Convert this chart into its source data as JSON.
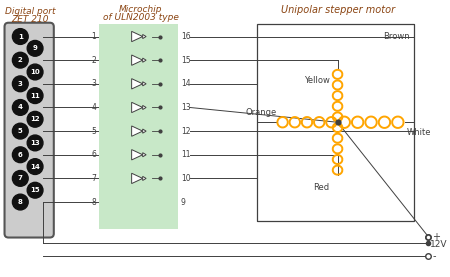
{
  "bg_color": "#ffffff",
  "port_title": "Digital port",
  "port_subtitle": "ZET 210",
  "chip_title": "Microchip",
  "chip_subtitle": "of ULN2003 type",
  "motor_title": "Unipolar stepper motor",
  "title_color": "#8B4513",
  "orange_color": "#FFA500",
  "dark_gray": "#404040",
  "green_bg": "#c8e8c8",
  "connector_left_pins": [
    "1",
    "2",
    "3",
    "4",
    "5",
    "6",
    "7",
    "8"
  ],
  "connector_right_pins": [
    "9",
    "10",
    "11",
    "12",
    "13",
    "14",
    "15"
  ],
  "chip_in_labels": [
    "1",
    "2",
    "3",
    "4",
    "5",
    "6",
    "7",
    "8"
  ],
  "chip_out_labels": [
    "16",
    "15",
    "14",
    "13",
    "12",
    "11",
    "10",
    "9"
  ],
  "coil_labels": [
    "Brown",
    "Yellow",
    "Orange",
    "White",
    "Red"
  ]
}
